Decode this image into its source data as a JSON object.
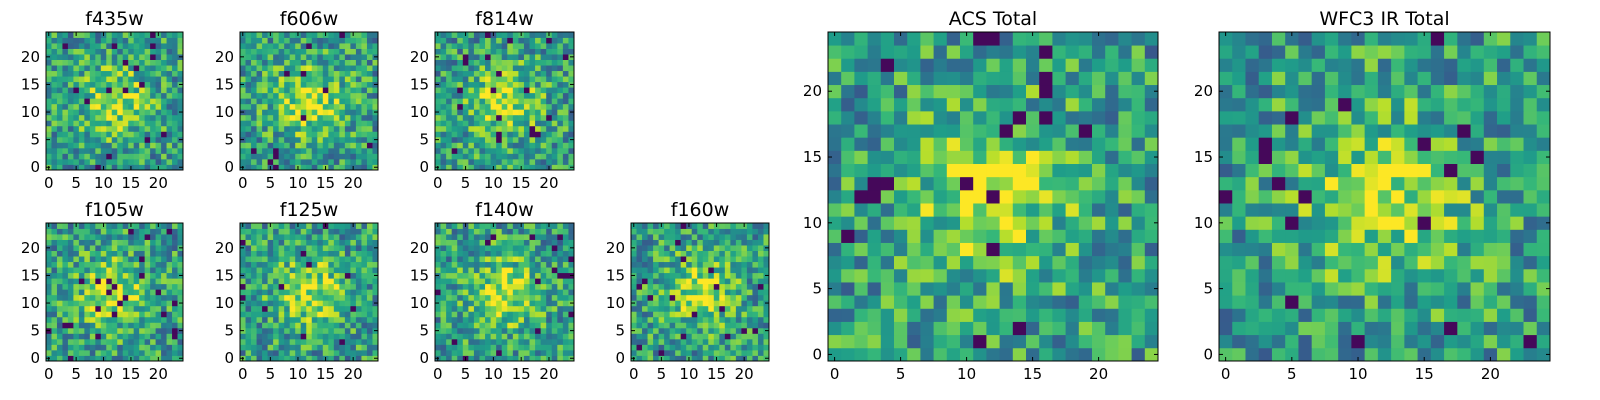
{
  "chart_data": [
    {
      "type": "heatmap",
      "title": "f435w",
      "cells": 25,
      "seed": 11,
      "xticks": [
        0,
        5,
        10,
        15,
        20
      ],
      "yticks": [
        0,
        5,
        10,
        15,
        20
      ],
      "xlim": [
        0,
        24
      ],
      "ylim": [
        0,
        24
      ],
      "colormap": "viridis"
    },
    {
      "type": "heatmap",
      "title": "f606w",
      "cells": 25,
      "seed": 23,
      "xticks": [
        0,
        5,
        10,
        15,
        20
      ],
      "yticks": [
        0,
        5,
        10,
        15,
        20
      ],
      "xlim": [
        0,
        24
      ],
      "ylim": [
        0,
        24
      ],
      "colormap": "viridis"
    },
    {
      "type": "heatmap",
      "title": "f814w",
      "cells": 25,
      "seed": 37,
      "xticks": [
        0,
        5,
        10,
        15,
        20
      ],
      "yticks": [
        0,
        5,
        10,
        15,
        20
      ],
      "xlim": [
        0,
        24
      ],
      "ylim": [
        0,
        24
      ],
      "colormap": "viridis"
    },
    {
      "type": "heatmap",
      "title": "f105w",
      "cells": 25,
      "seed": 41,
      "xticks": [
        0,
        5,
        10,
        15,
        20
      ],
      "yticks": [
        0,
        5,
        10,
        15,
        20
      ],
      "xlim": [
        0,
        24
      ],
      "ylim": [
        0,
        24
      ],
      "colormap": "viridis"
    },
    {
      "type": "heatmap",
      "title": "f125w",
      "cells": 25,
      "seed": 53,
      "xticks": [
        0,
        5,
        10,
        15,
        20
      ],
      "yticks": [
        0,
        5,
        10,
        15,
        20
      ],
      "xlim": [
        0,
        24
      ],
      "ylim": [
        0,
        24
      ],
      "colormap": "viridis"
    },
    {
      "type": "heatmap",
      "title": "f140w",
      "cells": 25,
      "seed": 67,
      "xticks": [
        0,
        5,
        10,
        15,
        20
      ],
      "yticks": [
        0,
        5,
        10,
        15,
        20
      ],
      "xlim": [
        0,
        24
      ],
      "ylim": [
        0,
        24
      ],
      "colormap": "viridis"
    },
    {
      "type": "heatmap",
      "title": "f160w",
      "cells": 25,
      "seed": 79,
      "xticks": [
        0,
        5,
        10,
        15,
        20
      ],
      "yticks": [
        0,
        5,
        10,
        15,
        20
      ],
      "xlim": [
        0,
        24
      ],
      "ylim": [
        0,
        24
      ],
      "colormap": "viridis"
    },
    {
      "type": "heatmap",
      "title": "ACS Total",
      "cells": 25,
      "seed": 83,
      "xticks": [
        0,
        5,
        10,
        15,
        20
      ],
      "yticks": [
        0,
        5,
        10,
        15,
        20
      ],
      "xlim": [
        0,
        24
      ],
      "ylim": [
        0,
        24
      ],
      "colormap": "viridis"
    },
    {
      "type": "heatmap",
      "title": "WFC3 IR Total",
      "cells": 25,
      "seed": 97,
      "xticks": [
        0,
        5,
        10,
        15,
        20
      ],
      "yticks": [
        0,
        5,
        10,
        15,
        20
      ],
      "xlim": [
        0,
        24
      ],
      "ylim": [
        0,
        24
      ],
      "colormap": "viridis"
    }
  ]
}
